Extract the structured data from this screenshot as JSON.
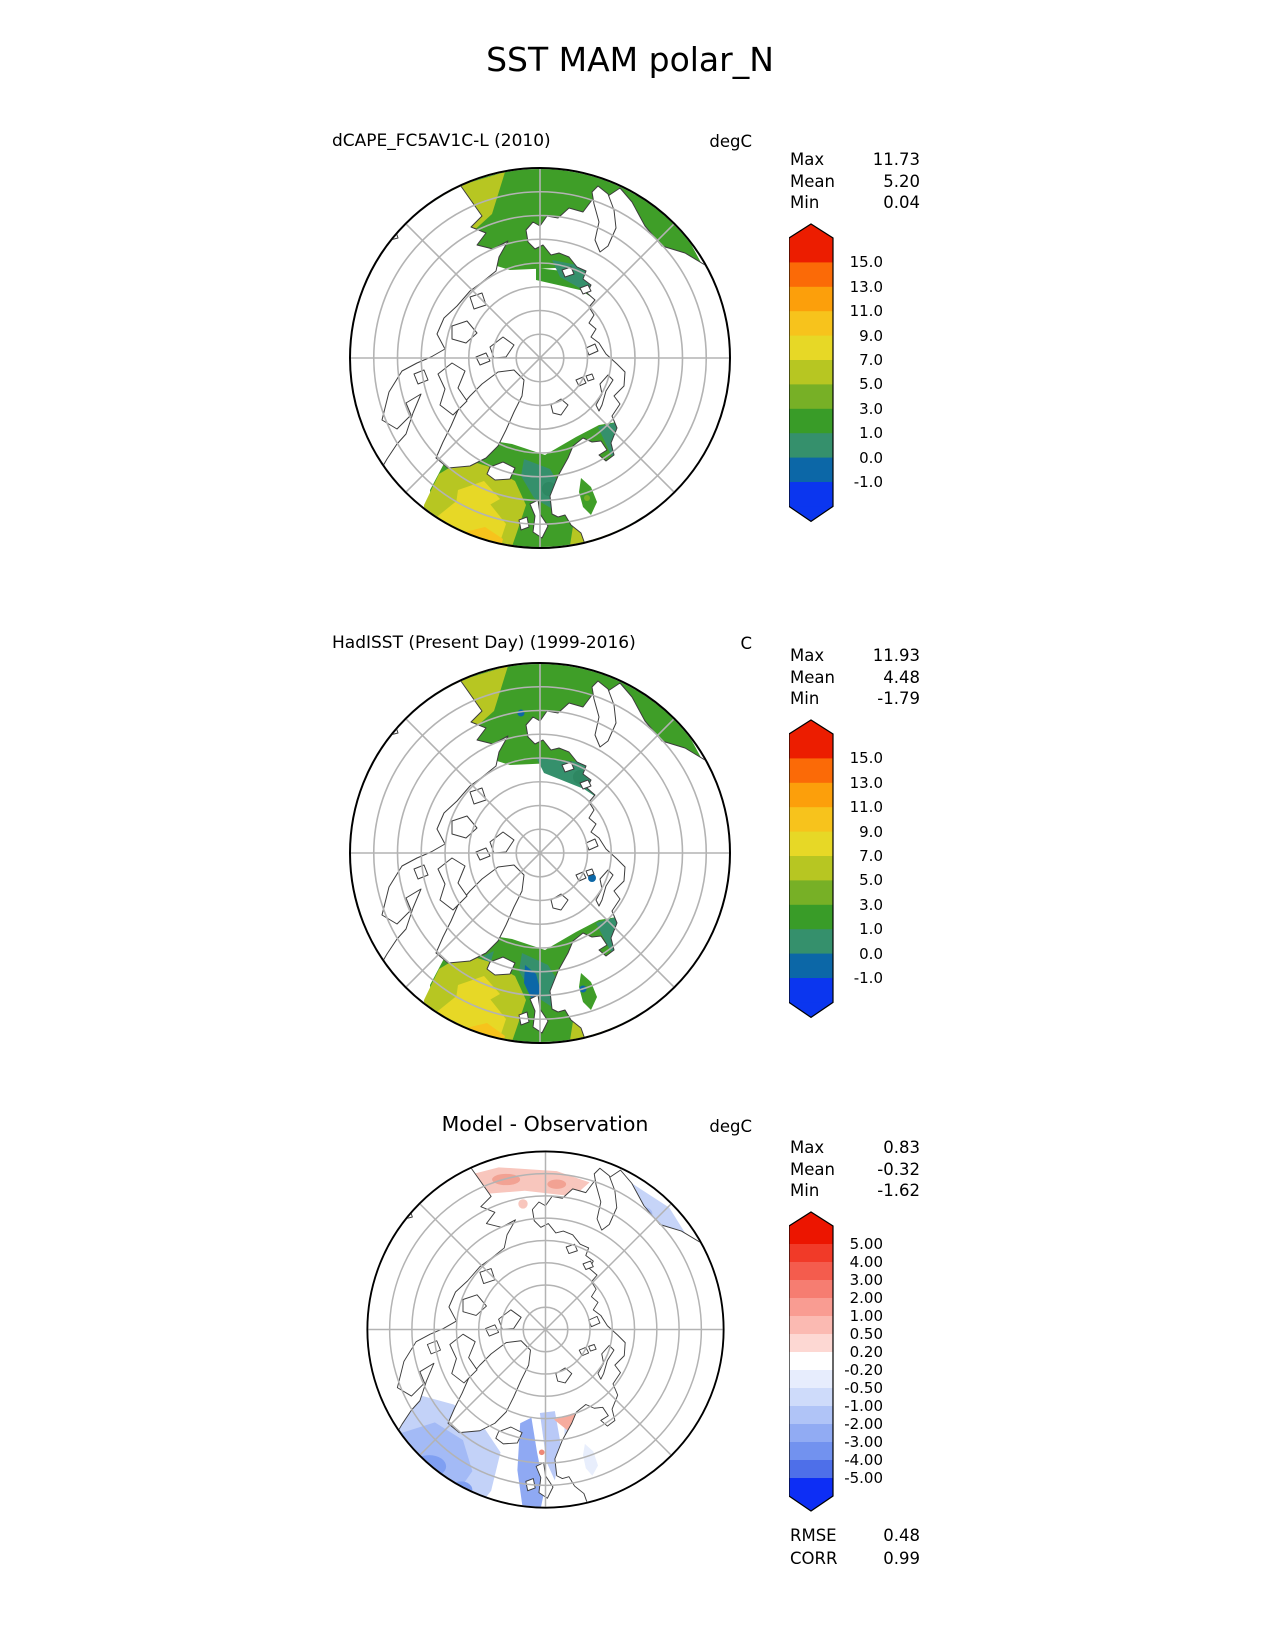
{
  "title": "SST MAM polar_N",
  "panels": [
    {
      "subtitle": "dCAPE_FC5AV1C-L (2010)",
      "unit": "degC",
      "stats": [
        {
          "label": "Max",
          "value": "11.73"
        },
        {
          "label": "Mean",
          "value": "5.20"
        },
        {
          "label": "Min",
          "value": "0.04"
        }
      ],
      "colorbar": {
        "labels": [
          "15.0",
          "13.0",
          "11.0",
          "9.0",
          "7.0",
          "5.0",
          "3.0",
          "1.0",
          "0.0",
          "-1.0"
        ],
        "colors": [
          "#ec1d00",
          "#fb6a07",
          "#fc9f0b",
          "#f7c31c",
          "#e7d826",
          "#b7c622",
          "#77b026",
          "#399c28",
          "#35906c",
          "#0c67a7",
          "#0b36ef"
        ]
      }
    },
    {
      "subtitle": "HadISST (Present Day) (1999-2016)",
      "unit": "C",
      "stats": [
        {
          "label": "Max",
          "value": "11.93"
        },
        {
          "label": "Mean",
          "value": "4.48"
        },
        {
          "label": "Min",
          "value": "-1.79"
        }
      ],
      "colorbar": {
        "labels": [
          "15.0",
          "13.0",
          "11.0",
          "9.0",
          "7.0",
          "5.0",
          "3.0",
          "1.0",
          "0.0",
          "-1.0"
        ],
        "colors": [
          "#ec1d00",
          "#fb6a07",
          "#fc9f0b",
          "#f7c31c",
          "#e7d826",
          "#b7c622",
          "#77b026",
          "#399c28",
          "#35906c",
          "#0c67a7",
          "#0b36ef"
        ]
      }
    },
    {
      "subtitle": "Model - Observation",
      "unit": "degC",
      "stats": [
        {
          "label": "Max",
          "value": "0.83"
        },
        {
          "label": "Mean",
          "value": "-0.32"
        },
        {
          "label": "Min",
          "value": "-1.62"
        }
      ],
      "colorbar": {
        "labels": [
          "5.00",
          "4.00",
          "3.00",
          "2.00",
          "1.00",
          "0.50",
          "0.20",
          "-0.20",
          "-0.50",
          "-1.00",
          "-2.00",
          "-3.00",
          "-4.00",
          "-5.00"
        ],
        "colors": [
          "#ec1500",
          "#f13a28",
          "#f45c4d",
          "#f67d71",
          "#f99c92",
          "#fbbab2",
          "#fdd8d3",
          "#ffffff",
          "#e7edfd",
          "#cedbfa",
          "#b0c4f7",
          "#91abf3",
          "#7292ef",
          "#4e6fe9",
          "#0d2ef5"
        ]
      },
      "metrics": [
        {
          "label": "RMSE",
          "value": "0.48"
        },
        {
          "label": "CORR",
          "value": "0.99"
        }
      ]
    }
  ],
  "chart_data": [
    {
      "type": "heatmap",
      "subtype": "north-polar-stereographic-map",
      "title": "dCAPE_FC5AV1C-L (2010)",
      "units": "degC",
      "stats": {
        "max": 11.73,
        "mean": 5.2,
        "min": 0.04
      },
      "colorbar_ticks": [
        15.0,
        13.0,
        11.0,
        9.0,
        7.0,
        5.0,
        3.0,
        1.0,
        0.0,
        -1.0
      ],
      "colorbar_extend": "both",
      "legend_position": "right"
    },
    {
      "type": "heatmap",
      "subtype": "north-polar-stereographic-map",
      "title": "HadISST (Present Day) (1999-2016)",
      "units": "C",
      "stats": {
        "max": 11.93,
        "mean": 4.48,
        "min": -1.79
      },
      "colorbar_ticks": [
        15.0,
        13.0,
        11.0,
        9.0,
        7.0,
        5.0,
        3.0,
        1.0,
        0.0,
        -1.0
      ],
      "colorbar_extend": "both",
      "legend_position": "right"
    },
    {
      "type": "heatmap",
      "subtype": "north-polar-stereographic-map",
      "title": "Model - Observation",
      "units": "degC",
      "stats": {
        "max": 0.83,
        "mean": -0.32,
        "min": -1.62
      },
      "colorbar_ticks": [
        5.0,
        4.0,
        3.0,
        2.0,
        1.0,
        0.5,
        0.2,
        -0.2,
        -0.5,
        -1.0,
        -2.0,
        -3.0,
        -4.0,
        -5.0
      ],
      "colorbar_extend": "both",
      "metrics": {
        "RMSE": 0.48,
        "CORR": 0.99
      },
      "legend_position": "right"
    }
  ]
}
